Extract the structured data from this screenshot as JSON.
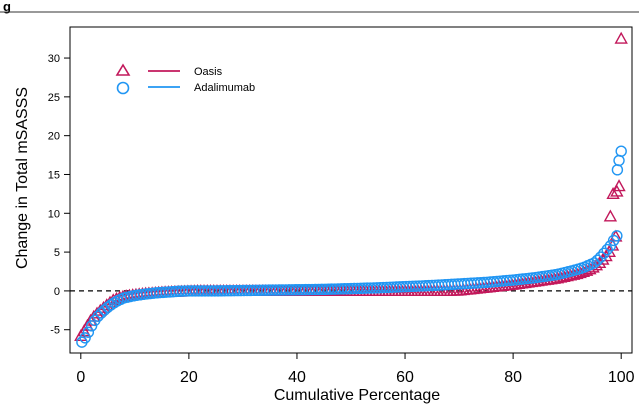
{
  "figure_label": "g",
  "chart_data": {
    "type": "scatter",
    "title": "",
    "xlabel": "Cumulative Percentage",
    "ylabel": "Change in Total mSASSS",
    "xlim": [
      -2,
      102
    ],
    "ylim": [
      -8,
      34
    ],
    "xticks": [
      0,
      20,
      40,
      60,
      80,
      100
    ],
    "yticks": [
      -5,
      0,
      5,
      10,
      15,
      20,
      25,
      30
    ],
    "reference_line": {
      "y": 0,
      "style": "dashed"
    },
    "grid": false,
    "legend": {
      "placement": "top-left"
    },
    "series": [
      {
        "name": "Oasis",
        "marker": "triangle",
        "color": "#c2185b",
        "points": [
          [
            0,
            -5.8
          ],
          [
            0.5,
            -5.3
          ],
          [
            1,
            -4.7
          ],
          [
            1.5,
            -4.2
          ],
          [
            2,
            -3.6
          ],
          [
            3,
            -2.9
          ],
          [
            4,
            -2.3
          ],
          [
            5,
            -1.7
          ],
          [
            6,
            -1.2
          ],
          [
            7,
            -0.9
          ],
          [
            8,
            -0.7
          ],
          [
            10,
            -0.5
          ],
          [
            12,
            -0.35
          ],
          [
            14,
            -0.25
          ],
          [
            16,
            -0.15
          ],
          [
            18,
            -0.1
          ],
          [
            20,
            -0.05
          ],
          [
            22,
            0
          ],
          [
            25,
            0
          ],
          [
            30,
            0
          ],
          [
            35,
            0
          ],
          [
            40,
            0
          ],
          [
            45,
            0
          ],
          [
            50,
            0
          ],
          [
            55,
            0
          ],
          [
            60,
            0
          ],
          [
            65,
            0
          ],
          [
            68,
            0
          ],
          [
            70,
            0.05
          ],
          [
            72,
            0.2
          ],
          [
            74,
            0.35
          ],
          [
            76,
            0.5
          ],
          [
            78,
            0.65
          ],
          [
            80,
            0.8
          ],
          [
            82,
            1
          ],
          [
            84,
            1.2
          ],
          [
            86,
            1.4
          ],
          [
            88,
            1.6
          ],
          [
            90,
            1.9
          ],
          [
            92,
            2.2
          ],
          [
            94,
            2.7
          ],
          [
            95,
            3.1
          ],
          [
            96,
            3.6
          ],
          [
            97,
            4.3
          ],
          [
            98,
            5.2
          ],
          [
            98.5,
            6
          ],
          [
            99,
            7
          ],
          [
            98,
            9.6
          ],
          [
            98.5,
            12.5
          ],
          [
            99.2,
            12.8
          ],
          [
            99.6,
            13.5
          ],
          [
            100,
            32.5
          ]
        ]
      },
      {
        "name": "Adalimumab",
        "marker": "circle",
        "color": "#2196f3",
        "points": [
          [
            0.2,
            -6.6
          ],
          [
            0.6,
            -6.3
          ],
          [
            1,
            -5.8
          ],
          [
            1.5,
            -5.2
          ],
          [
            2,
            -4.5
          ],
          [
            2.5,
            -3.9
          ],
          [
            3,
            -3.4
          ],
          [
            4,
            -2.7
          ],
          [
            5,
            -2.1
          ],
          [
            6,
            -1.6
          ],
          [
            7,
            -1.2
          ],
          [
            8,
            -0.9
          ],
          [
            10,
            -0.6
          ],
          [
            12,
            -0.4
          ],
          [
            14,
            -0.25
          ],
          [
            16,
            -0.15
          ],
          [
            18,
            -0.05
          ],
          [
            20,
            0
          ],
          [
            25,
            0
          ],
          [
            30,
            0.05
          ],
          [
            35,
            0.1
          ],
          [
            40,
            0.15
          ],
          [
            45,
            0.2
          ],
          [
            50,
            0.3
          ],
          [
            55,
            0.4
          ],
          [
            60,
            0.55
          ],
          [
            65,
            0.7
          ],
          [
            70,
            0.9
          ],
          [
            75,
            1.1
          ],
          [
            80,
            1.4
          ],
          [
            84,
            1.7
          ],
          [
            88,
            2.1
          ],
          [
            91,
            2.6
          ],
          [
            93,
            3
          ],
          [
            95,
            3.6
          ],
          [
            96,
            4.2
          ],
          [
            97,
            5
          ],
          [
            98,
            5.8
          ],
          [
            98.6,
            6.5
          ],
          [
            99.2,
            7.1
          ],
          [
            99.6,
            7.3
          ],
          [
            99.3,
            15.6
          ],
          [
            99.6,
            16.8
          ],
          [
            100,
            18
          ]
        ]
      }
    ]
  }
}
